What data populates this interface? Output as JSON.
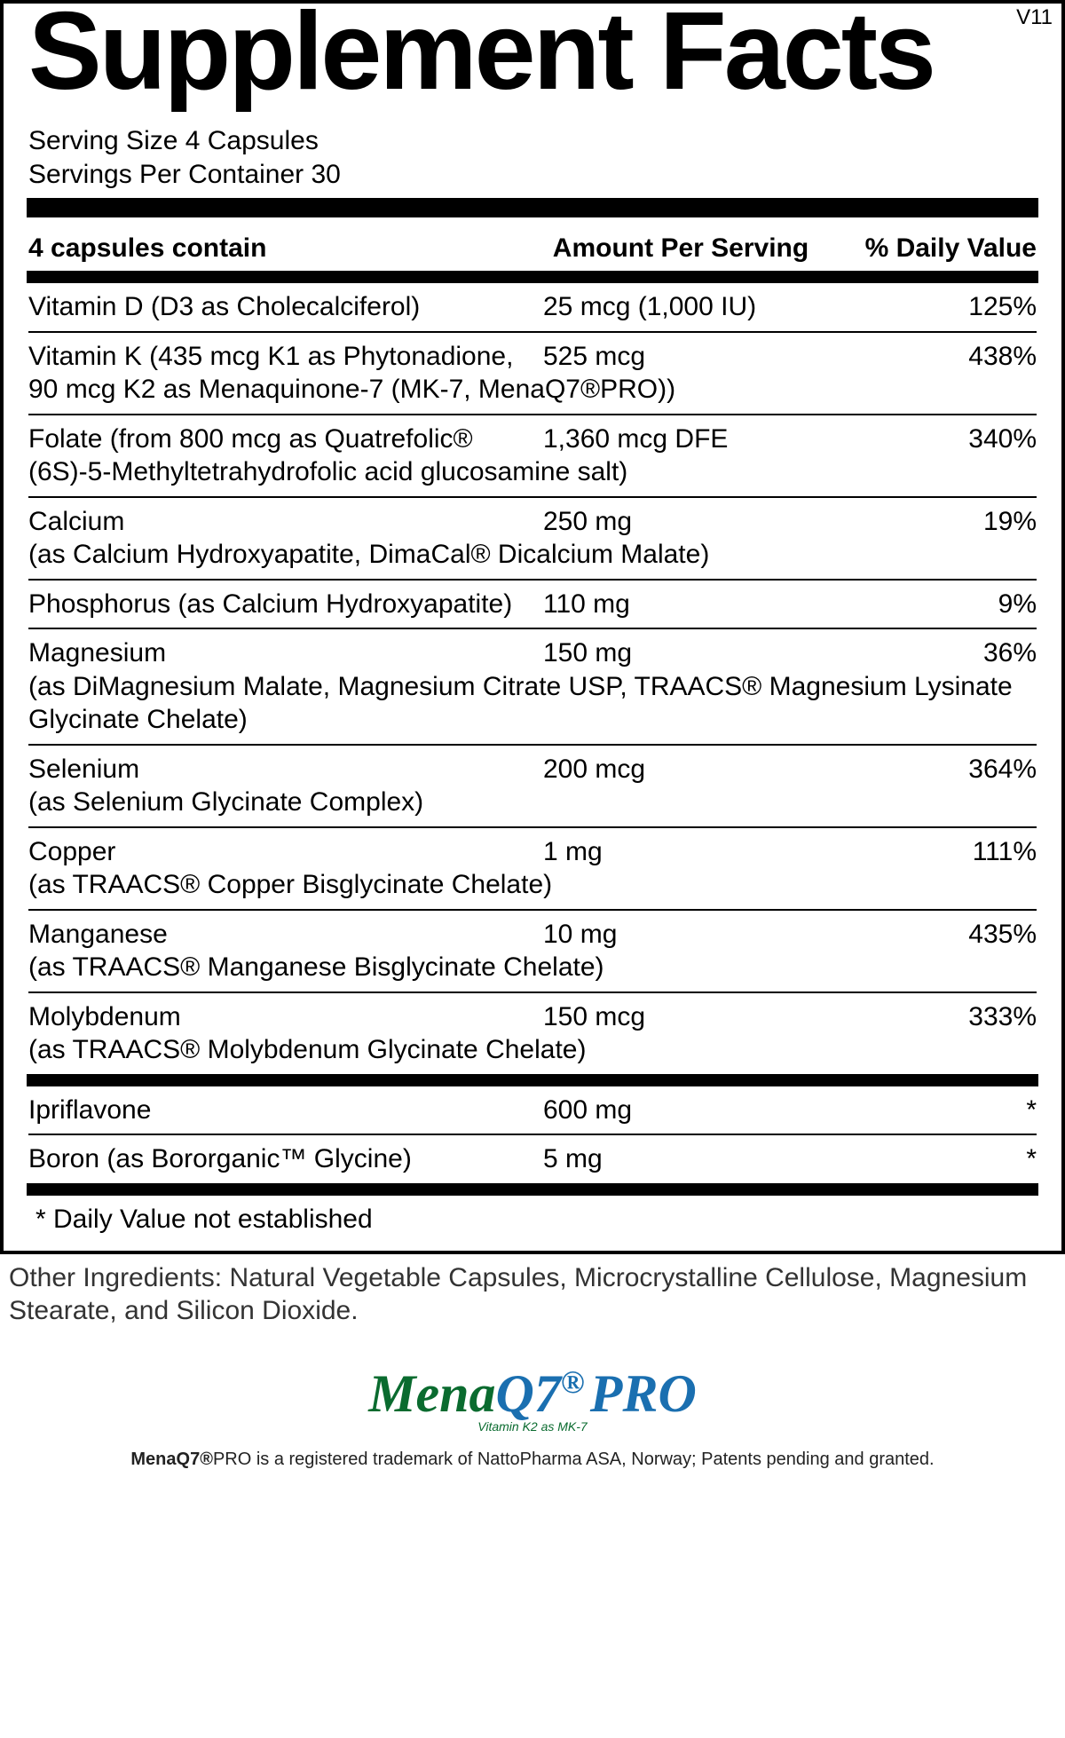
{
  "version": "V11",
  "title": "Supplement Facts",
  "serving_size": "Serving Size 4 Capsules",
  "servings_per_container": "Servings Per Container 30",
  "header": {
    "contain": "4 capsules contain",
    "amount": "Amount Per Serving",
    "dv": "% Daily Value"
  },
  "rows": [
    {
      "name": "Vitamin D (D3 as Cholecalciferol)",
      "sub": "",
      "amount": "25 mcg (1,000 IU)",
      "dv": "125%"
    },
    {
      "name": "Vitamin K (435 mcg K1 as Phytonadione,",
      "sub": "90 mcg K2 as Menaquinone-7 (MK-7, MenaQ7®PRO))",
      "amount": "525 mcg",
      "dv": "438%"
    },
    {
      "name": "Folate (from 800 mcg as Quatrefolic®",
      "sub": "(6S)-5-Methyltetrahydrofolic acid glucosamine salt)",
      "amount": "1,360 mcg DFE",
      "dv": "340%"
    },
    {
      "name": "Calcium",
      "sub": "(as Calcium Hydroxyapatite, DimaCal® Dicalcium Malate)",
      "amount": "250 mg",
      "dv": "19%"
    },
    {
      "name": "Phosphorus (as Calcium Hydroxyapatite)",
      "sub": "",
      "amount": "110 mg",
      "dv": "9%"
    },
    {
      "name": "Magnesium",
      "sub": "(as DiMagnesium Malate, Magnesium Citrate USP, TRAACS® Magnesium Lysinate Glycinate Chelate)",
      "amount": "150 mg",
      "dv": "36%"
    },
    {
      "name": "Selenium",
      "sub": "(as Selenium Glycinate Complex)",
      "amount": "200 mcg",
      "dv": "364%"
    },
    {
      "name": "Copper",
      "sub": "(as TRAACS® Copper Bisglycinate Chelate)",
      "amount": "1 mg",
      "dv": "111%"
    },
    {
      "name": "Manganese",
      "sub": "(as TRAACS® Manganese Bisglycinate Chelate)",
      "amount": "10 mg",
      "dv": "435%"
    },
    {
      "name": "Molybdenum",
      "sub": "(as TRAACS® Molybdenum Glycinate Chelate)",
      "amount": "150 mcg",
      "dv": "333%"
    }
  ],
  "rows2": [
    {
      "name": "Ipriflavone",
      "sub": "",
      "amount": "600 mg",
      "dv": "*"
    },
    {
      "name": "Boron (as Bororganic™ Glycine)",
      "sub": "",
      "amount": "5 mg",
      "dv": "*"
    }
  ],
  "footnote": "* Daily Value not established",
  "other_ingredients": "Other Ingredients: Natural Vegetable Capsules, Microcrystalline Cellulose, Magnesium Stearate, and Silicon Dioxide.",
  "logo": {
    "mena": "Mena",
    "q7": "Q7",
    "pro": "PRO",
    "sub": "Vitamin K2 as MK-7"
  },
  "trademark": "PRO is a registered trademark of NattoPharma ASA, Norway; Patents pending and granted.",
  "trademark_brand": "MenaQ7®"
}
